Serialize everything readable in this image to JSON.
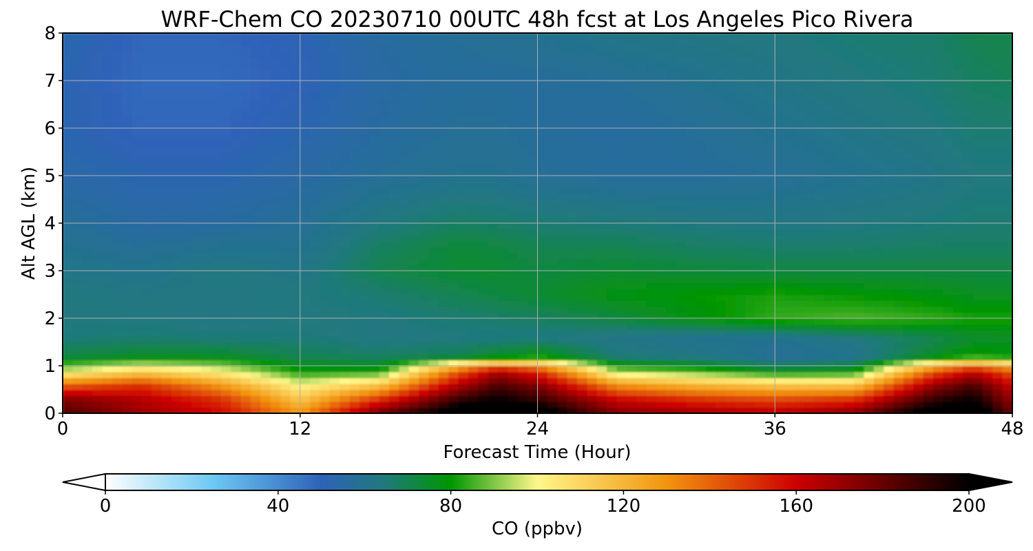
{
  "chart_data": {
    "type": "heatmap",
    "title": "WRF-Chem CO  20230710 00UTC 48h fcst at Los Angeles Pico Rivera",
    "xlabel": "Forecast Time (Hour)",
    "ylabel": "Alt AGL (km)",
    "xlim": [
      0,
      48
    ],
    "ylim": [
      0,
      8
    ],
    "xticks": [
      "0",
      "12",
      "24",
      "36",
      "48"
    ],
    "yticks": [
      "0",
      "1",
      "2",
      "3",
      "4",
      "5",
      "6",
      "7",
      "8"
    ],
    "grid": true,
    "colorbar": {
      "label": "CO  (ppbv)",
      "min": 0,
      "max": 200,
      "extend": "both",
      "ticks": [
        "0",
        "40",
        "80",
        "120",
        "160",
        "200"
      ],
      "colors": [
        "#ffffff",
        "#6cc8f4",
        "#2e62b8",
        "#1f7a7a",
        "#009600",
        "#fff78a",
        "#f2940f",
        "#cd0000",
        "#000000"
      ],
      "color_stops": [
        0,
        25,
        50,
        65,
        80,
        100,
        130,
        160,
        200
      ]
    },
    "series": [
      {
        "name": "",
        "x": [
          0,
          4,
          8,
          12,
          16,
          20,
          22,
          24,
          28,
          32,
          36,
          40,
          44,
          46,
          48
        ],
        "values": [
          1.0,
          0.9,
          1.05,
          0.75,
          0.7,
          0.95,
          1.15,
          1.05,
          0.82,
          0.78,
          0.7,
          0.72,
          1.05,
          1.25,
          1.1
        ]
      }
    ],
    "profiles_ppbv": {
      "heights_km": [
        0,
        0.3,
        0.6,
        0.9,
        1.2,
        1.6,
        2.0,
        2.5,
        3.0,
        3.5,
        4.0,
        5.0,
        6.0,
        7.0,
        8.0
      ],
      "hours": [
        0,
        4,
        8,
        12,
        16,
        20,
        22,
        24,
        28,
        32,
        36,
        40,
        44,
        46,
        48
      ],
      "values": [
        [
          185,
          175,
          140,
          95,
          72,
          65,
          64,
          64,
          62,
          60,
          58,
          54,
          52,
          52,
          53
        ],
        [
          170,
          165,
          150,
          110,
          75,
          66,
          64,
          63,
          61,
          58,
          55,
          52,
          49,
          48,
          49
        ],
        [
          160,
          150,
          128,
          100,
          75,
          65,
          63,
          63,
          64,
          60,
          56,
          52,
          49,
          48,
          49
        ],
        [
          130,
          115,
          100,
          80,
          70,
          65,
          64,
          64,
          62,
          60,
          58,
          55,
          52,
          50,
          51
        ],
        [
          180,
          150,
          115,
          80,
          68,
          63,
          64,
          66,
          70,
          68,
          64,
          58,
          56,
          55,
          56
        ],
        [
          210,
          190,
          165,
          140,
          70,
          64,
          66,
          70,
          74,
          73,
          68,
          60,
          58,
          57,
          58
        ],
        [
          220,
          200,
          185,
          165,
          75,
          64,
          67,
          72,
          74,
          72,
          67,
          60,
          58,
          57,
          59
        ],
        [
          210,
          190,
          175,
          150,
          80,
          64,
          68,
          74,
          72,
          70,
          66,
          58,
          57,
          57,
          60
        ],
        [
          175,
          160,
          130,
          90,
          65,
          62,
          72,
          78,
          74,
          70,
          65,
          57,
          56,
          58,
          62
        ],
        [
          170,
          150,
          120,
          85,
          63,
          60,
          78,
          80,
          73,
          68,
          64,
          57,
          58,
          60,
          63
        ],
        [
          165,
          145,
          115,
          75,
          58,
          60,
          84,
          82,
          72,
          67,
          63,
          58,
          60,
          62,
          64
        ],
        [
          175,
          150,
          115,
          78,
          60,
          64,
          86,
          80,
          72,
          67,
          64,
          60,
          62,
          64,
          66
        ],
        [
          210,
          190,
          170,
          140,
          75,
          70,
          84,
          78,
          72,
          68,
          65,
          62,
          64,
          66,
          67
        ],
        [
          215,
          200,
          185,
          160,
          82,
          74,
          82,
          76,
          72,
          68,
          66,
          64,
          66,
          68,
          70
        ],
        [
          180,
          170,
          160,
          140,
          80,
          75,
          82,
          76,
          72,
          68,
          66,
          64,
          66,
          69,
          71
        ]
      ]
    }
  }
}
